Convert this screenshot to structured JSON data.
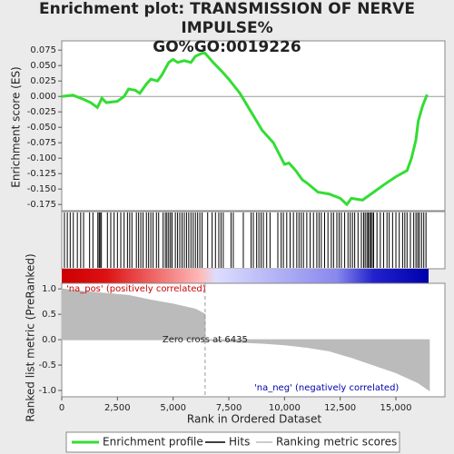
{
  "title": [
    "Enrichment plot: TRANSMISSION OF NERVE IMPULSE%",
    "GO%GO:0019226"
  ],
  "chart_data": [
    {
      "type": "line",
      "ylabel": "Enrichment score (ES)",
      "xlim": [
        0,
        17200
      ],
      "ylim": [
        -0.185,
        0.09
      ],
      "yticks": [
        0.075,
        {
          "value": 0.05,
          "label": "0.050"
        },
        0.025,
        {
          "value": 0,
          "label": "0.000"
        },
        -0.025,
        {
          "value": -0.05,
          "label": "-0.050"
        },
        -0.075,
        {
          "value": -0.1,
          "label": "-0.100"
        },
        -0.125,
        {
          "value": -0.15,
          "label": "-0.150"
        },
        -0.175
      ],
      "x": [
        0,
        500,
        1000,
        1300,
        1600,
        1800,
        2000,
        2500,
        2800,
        3000,
        3300,
        3500,
        3800,
        4000,
        4300,
        4500,
        4800,
        5000,
        5200,
        5500,
        5800,
        6000,
        6300,
        6435,
        6800,
        7200,
        7500,
        8000,
        8500,
        9000,
        9500,
        10000,
        10200,
        10500,
        10800,
        11000,
        11500,
        12000,
        12500,
        12800,
        13000,
        13500,
        14000,
        14500,
        15000,
        15500,
        15700,
        15900,
        16000,
        16200,
        16400
      ],
      "series": [
        {
          "name": "Enrichment profile",
          "color": "#33dd33",
          "values": [
            0,
            0.002,
            -0.005,
            -0.01,
            -0.018,
            -0.003,
            -0.01,
            -0.008,
            0.0,
            0.012,
            0.01,
            0.005,
            0.02,
            0.028,
            0.025,
            0.035,
            0.055,
            0.06,
            0.055,
            0.058,
            0.055,
            0.065,
            0.07,
            0.07,
            0.055,
            0.04,
            0.028,
            0.005,
            -0.025,
            -0.055,
            -0.075,
            -0.11,
            -0.108,
            -0.12,
            -0.135,
            -0.14,
            -0.155,
            -0.158,
            -0.165,
            -0.175,
            -0.165,
            -0.168,
            -0.155,
            -0.142,
            -0.13,
            -0.12,
            -0.1,
            -0.07,
            -0.04,
            -0.015,
            0.003
          ]
        }
      ]
    },
    {
      "type": "hits",
      "name": "Hits",
      "color": "#000000",
      "x": [
        120,
        250,
        380,
        520,
        700,
        850,
        980,
        1250,
        1400,
        1620,
        1680,
        1720,
        1780,
        2050,
        2200,
        2350,
        2500,
        2650,
        2800,
        2950,
        3050,
        3150,
        3350,
        3450,
        3550,
        3650,
        3800,
        3900,
        4000,
        4100,
        4250,
        4350,
        4550,
        4650,
        4720,
        4800,
        4880,
        4950,
        5100,
        5200,
        5300,
        5400,
        5500,
        5600,
        5700,
        5800,
        5900,
        6000,
        6100,
        6200,
        6300,
        6550,
        6750,
        6900,
        7050,
        7150,
        7250,
        7600,
        7700,
        8150,
        8500,
        8600,
        8750,
        8850,
        8950,
        9050,
        9200,
        9350,
        9700,
        9850,
        9950,
        10100,
        10250,
        10400,
        10550,
        10650,
        10750,
        10850,
        11000,
        11150,
        11300,
        11450,
        11550,
        11650,
        11800,
        11950,
        12100,
        12200,
        12350,
        12450,
        12550,
        12700,
        12850,
        12950,
        13050,
        13150,
        13300,
        13450,
        13550,
        13620,
        13700,
        13760,
        13820,
        13880,
        13940,
        14000,
        14150,
        14300,
        14450,
        14600,
        14700,
        14850,
        15000,
        15150,
        15300,
        15400,
        15500,
        15650,
        15800,
        15900,
        15980,
        16050,
        16150,
        16250,
        16350
      ]
    },
    {
      "type": "area",
      "name": "Ranking metric scores",
      "color": "#bbbbbb",
      "xlabel": "Rank in Ordered Dataset",
      "ylabel": "Ranked list metric (PreRanked)",
      "xlim": [
        0,
        17200
      ],
      "ylim": [
        -1.125,
        1.11
      ],
      "xticks": [
        0,
        {
          "value": 2500,
          "label": "2,500"
        },
        {
          "value": 5000,
          "label": "5,000"
        },
        {
          "value": 7500,
          "label": "7,500"
        },
        {
          "value": 10000,
          "label": "10,000"
        },
        {
          "value": 12500,
          "label": "12,500"
        },
        {
          "value": 15000,
          "label": "15,000"
        }
      ],
      "yticks": [
        {
          "value": 1,
          "label": "1.0"
        },
        0.5,
        {
          "value": 0,
          "label": "0.0"
        },
        -0.5,
        {
          "value": -1,
          "label": "-1.0"
        }
      ],
      "x": [
        0,
        500,
        1500,
        3000,
        4000,
        5000,
        6000,
        6435,
        6436,
        7000,
        8000,
        9000,
        10000,
        11000,
        12000,
        13000,
        14000,
        15000,
        16000,
        16500
      ],
      "values": [
        1.0,
        0.97,
        0.93,
        0.87,
        0.78,
        0.7,
        0.6,
        0.5,
        -0.01,
        -0.02,
        -0.05,
        -0.07,
        -0.1,
        -0.15,
        -0.22,
        -0.35,
        -0.5,
        -0.65,
        -0.85,
        -1.0
      ],
      "zero_cross": 6435,
      "annotations": [
        "'na_pos' (positively correlated)",
        "Zero cross at 6435",
        "'na_neg' (negatively correlated)"
      ]
    }
  ]
}
